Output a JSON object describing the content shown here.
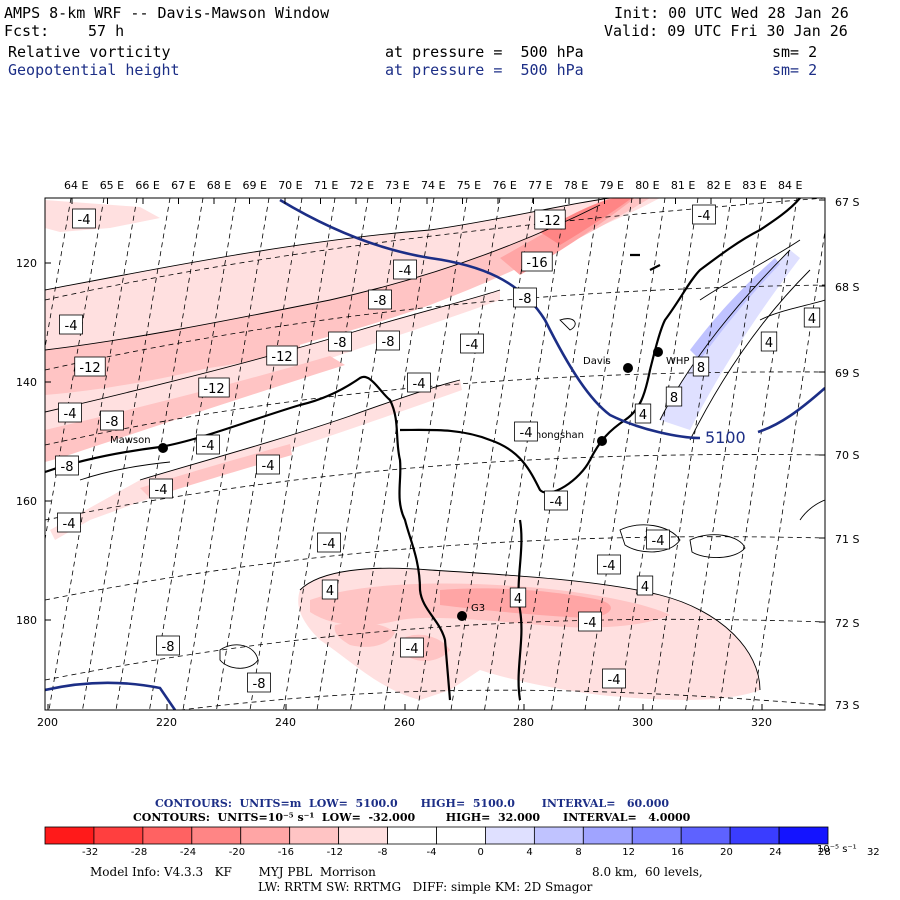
{
  "header": {
    "title": "AMPS 8-km WRF -- Davis-Mawson Window",
    "fcst_label": "Fcst:",
    "fcst_value": "57 h",
    "init": "Init: 00 UTC Wed 28 Jan 26",
    "valid": "Valid: 09 UTC Fri 30 Jan 26",
    "field1_name": "Relative vorticity",
    "field1_level": "at pressure =  500 hPa",
    "field1_sm": "sm= 2",
    "field2_name": "Geopotential height",
    "field2_level": "at pressure =  500 hPa",
    "field2_sm": "sm= 2"
  },
  "map": {
    "top_lon_labels": [
      "64 E",
      "65 E",
      "66 E",
      "67 E",
      "68 E",
      "69 E",
      "70 E",
      "71 E",
      "72 E",
      "73 E",
      "74 E",
      "75 E",
      "76 E",
      "77 E",
      "78 E",
      "79 E",
      "80 E",
      "81 E",
      "82 E",
      "83 E",
      "84 E"
    ],
    "right_lat_labels": [
      "67 S",
      "68 S",
      "69 S",
      "70 S",
      "71 S",
      "72 S",
      "73 S"
    ],
    "left_y_labels": [
      "120",
      "140",
      "160",
      "180"
    ],
    "bottom_x_labels": [
      "200",
      "220",
      "240",
      "260",
      "280",
      "300",
      "320"
    ],
    "height_label": "5100",
    "stations": [
      {
        "name": "Mawson"
      },
      {
        "name": "Davis"
      },
      {
        "name": "WHP"
      },
      {
        "name": "Zhongshan"
      },
      {
        "name": "G3"
      }
    ],
    "vort_labels": [
      "-4",
      "-4",
      "-12",
      "-16",
      "-8",
      "-4",
      "-8",
      "-4",
      "-8",
      "-8",
      "-12",
      "-4",
      "-12",
      "-4",
      "-12",
      "-4",
      "-8",
      "-4",
      "-4",
      "-8",
      "-4",
      "-4",
      "-4",
      "-4",
      "-4",
      "-4",
      "-4",
      "4",
      "4",
      "4",
      "4",
      "8",
      "8",
      "4",
      "-4",
      "-4",
      "-8",
      "-8",
      "-4",
      "4",
      "4",
      "4",
      "-4"
    ]
  },
  "legend": {
    "contours1": "CONTOURS:  UNITS=m  LOW=  5100.0      HIGH=  5100.0       INTERVAL=   60.000",
    "contours2": "CONTOURS:  UNITS=10⁻⁵ s⁻¹  LOW=  -32.000        HIGH=  32.000      INTERVAL=   4.0000",
    "colorbar_colors": [
      "#ff1a1a",
      "#ff3f3f",
      "#ff6262",
      "#ff8585",
      "#ffa5a5",
      "#ffc4c4",
      "#ffe0e0",
      "#ffffff",
      "#ffffff",
      "#dfe0ff",
      "#c0c3ff",
      "#a0a4ff",
      "#7f84ff",
      "#5e62ff",
      "#3a3dff",
      "#1414ff"
    ],
    "colorbar_labels": [
      "-32",
      "-28",
      "-24",
      "-20",
      "-16",
      "-12",
      "-8",
      "-4",
      "0",
      "4",
      "8",
      "12",
      "16",
      "20",
      "24",
      "28",
      "32"
    ],
    "colorbar_units": "10⁻⁵ s⁻¹"
  },
  "model_info": {
    "line1_a": "Model Info: V4.3.3   KF       MYJ PBL  Morrison",
    "line1_b": "8.0 km,  60 levels,",
    "line2": "LW: RRTM SW: RRTMG   DIFF: simple KM: 2D Smagor"
  }
}
